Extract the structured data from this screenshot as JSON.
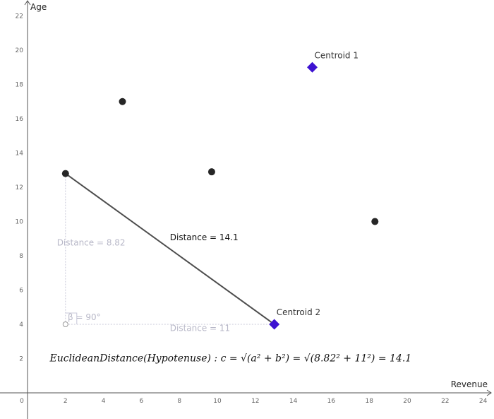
{
  "chart_data": {
    "type": "scatter",
    "xlabel": "Revenue",
    "ylabel": "Age",
    "xlim": [
      0,
      24
    ],
    "ylim": [
      0,
      22
    ],
    "x_ticks": [
      "0",
      "2",
      "4",
      "6",
      "8",
      "10",
      "12",
      "14",
      "16",
      "18",
      "20",
      "22",
      "24"
    ],
    "y_ticks": [
      "2",
      "4",
      "6",
      "8",
      "10",
      "12",
      "14",
      "16",
      "18",
      "20",
      "22"
    ],
    "grid": false,
    "points": [
      {
        "x": 2,
        "y": 12.8
      },
      {
        "x": 5,
        "y": 17
      },
      {
        "x": 9.7,
        "y": 12.9
      },
      {
        "x": 18.3,
        "y": 10
      }
    ],
    "centroids": [
      {
        "name": "Centroid 1",
        "x": 15,
        "y": 19
      },
      {
        "name": "Centroid 2",
        "x": 13,
        "y": 4
      }
    ],
    "annotations": {
      "hypotenuse_label": "Distance = 14.1",
      "vertical_label": "Distance = 8.82",
      "horizontal_label": "Distance = 11",
      "angle_label": "β = 90°",
      "formula": "EuclideanDistance(Hypotenuse) : c = √(a² + b²) = √(8.82² + 11²) = 14.1"
    },
    "colors": {
      "point": "#262626",
      "centroid": "#3d12d1",
      "line": "#4d4d4d",
      "guide": "#c8c8d8"
    }
  }
}
